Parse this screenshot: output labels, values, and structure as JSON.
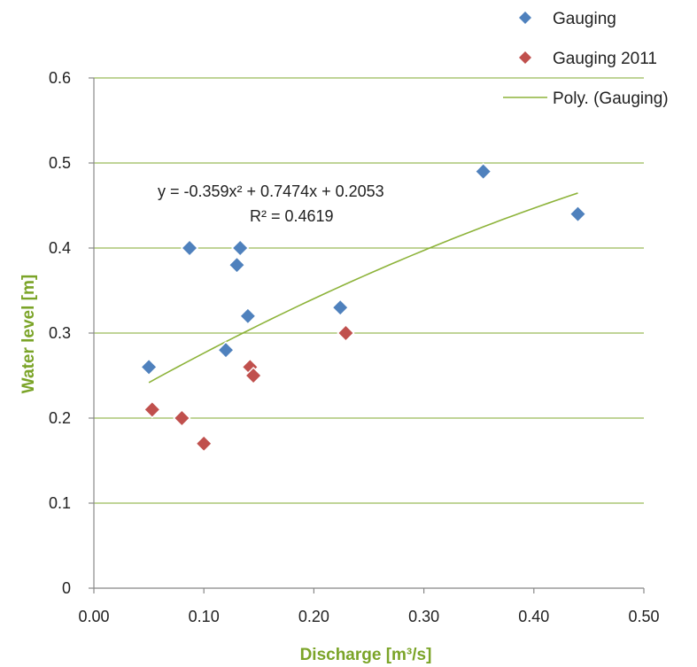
{
  "chart_data": {
    "type": "scatter",
    "title": "",
    "xlabel": "Discharge [m³/s]",
    "ylabel": "Water level [m]",
    "xlim": [
      0.0,
      0.5
    ],
    "ylim": [
      0.0,
      0.6
    ],
    "x_ticks": [
      "0.00",
      "0.10",
      "0.20",
      "0.30",
      "0.40",
      "0.50"
    ],
    "y_ticks": [
      "0",
      "0.1",
      "0.2",
      "0.3",
      "0.4",
      "0.5",
      "0.6"
    ],
    "grid": "horizontal",
    "legend_position": "top-right",
    "series": [
      {
        "name": "Gauging",
        "color": "#4f81bd",
        "marker": "diamond",
        "points": [
          {
            "x": 0.05,
            "y": 0.26
          },
          {
            "x": 0.087,
            "y": 0.4
          },
          {
            "x": 0.12,
            "y": 0.28
          },
          {
            "x": 0.13,
            "y": 0.38
          },
          {
            "x": 0.133,
            "y": 0.4
          },
          {
            "x": 0.14,
            "y": 0.32
          },
          {
            "x": 0.224,
            "y": 0.33
          },
          {
            "x": 0.354,
            "y": 0.49
          },
          {
            "x": 0.44,
            "y": 0.44
          }
        ]
      },
      {
        "name": "Gauging 2011",
        "color": "#c0504d",
        "marker": "diamond",
        "points": [
          {
            "x": 0.053,
            "y": 0.21
          },
          {
            "x": 0.08,
            "y": 0.2
          },
          {
            "x": 0.1,
            "y": 0.17
          },
          {
            "x": 0.142,
            "y": 0.26
          },
          {
            "x": 0.145,
            "y": 0.25
          },
          {
            "x": 0.229,
            "y": 0.3
          }
        ]
      }
    ],
    "trendline": {
      "name": "Poly. (Gauging)",
      "color": "#8db33a",
      "x_range": [
        0.05,
        0.44
      ],
      "coefficients": {
        "a": -0.359,
        "b": 0.7474,
        "c": 0.2053
      },
      "equation_label": "y = -0.359x² + 0.7474x + 0.2053",
      "r2_label": "R² = 0.4619"
    }
  },
  "colors": {
    "axis_title": "#7ba428",
    "grid": "#9bbb59",
    "axis": "#888888"
  }
}
